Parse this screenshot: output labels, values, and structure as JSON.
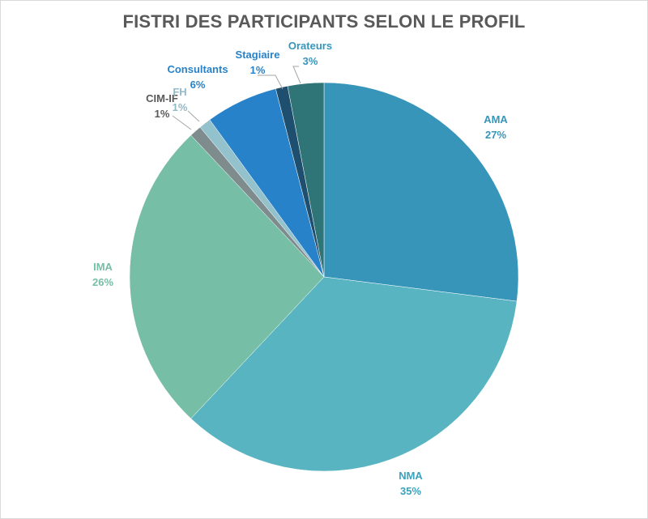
{
  "chart_data": {
    "type": "pie",
    "title": "FISTRI DES PARTICIPANTS SELON LE PROFIL",
    "slices": [
      {
        "name": "AMA",
        "value": 27,
        "label": "27%",
        "color": "#3795BA"
      },
      {
        "name": "NMA",
        "value": 35,
        "label": "35%",
        "color": "#57B4C0"
      },
      {
        "name": "IMA",
        "value": 26,
        "label": "26%",
        "color": "#76BEA5"
      },
      {
        "name": "CIM-IF",
        "value": 1,
        "label": "1%",
        "color": "#7F8C8D"
      },
      {
        "name": "FH",
        "value": 1,
        "label": "1%",
        "color": "#93C1CC"
      },
      {
        "name": "Consultants",
        "value": 6,
        "label": "6%",
        "color": "#2882C9"
      },
      {
        "name": "Stagiaire",
        "value": 1,
        "label": "1%",
        "color": "#1E4F6E"
      },
      {
        "name": "Orateurs",
        "value": 3,
        "label": "3%",
        "color": "#2F7477"
      }
    ],
    "label_colors": {
      "AMA": "#3795BA",
      "NMA": "#3BA2BE",
      "IMA": "#76BEA5",
      "CIM-IF": "#595959",
      "FH": "#93B9C8",
      "Consultants": "#2882C9",
      "Stagiaire": "#2882C9",
      "Orateurs": "#3795BA"
    }
  }
}
